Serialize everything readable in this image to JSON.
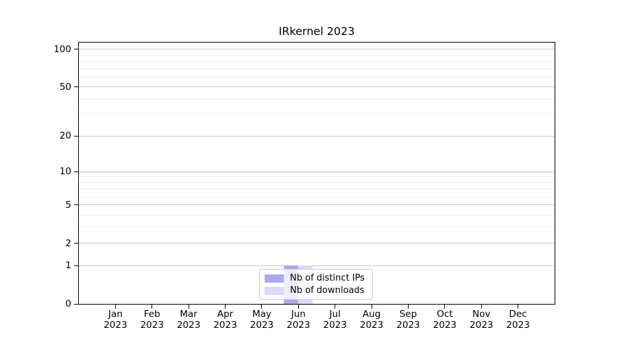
{
  "chart_data": {
    "type": "bar",
    "title": "IRkernel 2023",
    "categories": [
      {
        "month": "Jan",
        "year": "2023"
      },
      {
        "month": "Feb",
        "year": "2023"
      },
      {
        "month": "Mar",
        "year": "2023"
      },
      {
        "month": "Apr",
        "year": "2023"
      },
      {
        "month": "May",
        "year": "2023"
      },
      {
        "month": "Jun",
        "year": "2023"
      },
      {
        "month": "Jul",
        "year": "2023"
      },
      {
        "month": "Aug",
        "year": "2023"
      },
      {
        "month": "Sep",
        "year": "2023"
      },
      {
        "month": "Oct",
        "year": "2023"
      },
      {
        "month": "Nov",
        "year": "2023"
      },
      {
        "month": "Dec",
        "year": "2023"
      }
    ],
    "series": [
      {
        "name": "Nb of distinct IPs",
        "color": "#a9aaee",
        "values": [
          0,
          0,
          0,
          0,
          0,
          1,
          0,
          0,
          0,
          0,
          0,
          0
        ]
      },
      {
        "name": "Nb of downloads",
        "color": "#dbdbf6",
        "values": [
          0,
          0,
          0,
          0,
          0,
          1,
          0,
          0,
          0,
          0,
          0,
          0
        ]
      }
    ],
    "xlabel": "",
    "ylabel": "",
    "yscale": "log1p",
    "ylim": [
      0,
      113
    ],
    "yticks_major": [
      0,
      1,
      2,
      5,
      10,
      20,
      50,
      100
    ],
    "yticks_minor": [
      3,
      4,
      6,
      7,
      8,
      9,
      30,
      40,
      60,
      70,
      80,
      90
    ],
    "grid": "both",
    "legend_position": "lower-center-inside"
  }
}
